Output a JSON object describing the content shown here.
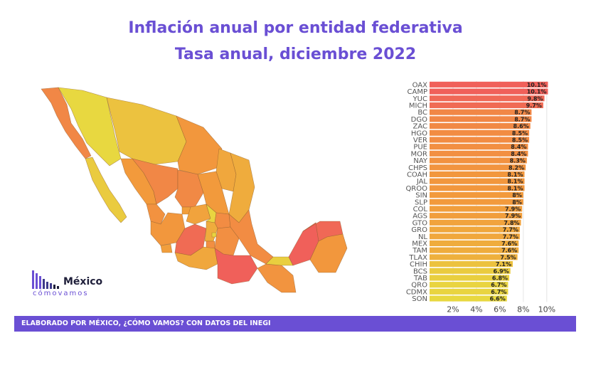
{
  "title": "Inflación anual por entidad federativa",
  "subtitle": "Tasa anual, diciembre 2022",
  "footer": "ELABORADO POR MÉXICO, ¿CÓMO VAMOS? CON DATOS DEL INEGI",
  "logo": {
    "name": "México",
    "tagline": "cómovamos"
  },
  "colors": {
    "title": "#6a4fd4",
    "footer_bg": "#6a4fd4",
    "high": "#f0605a",
    "mid": "#f29a3c",
    "low": "#e8d840"
  },
  "chart_data": {
    "type": "bar",
    "orientation": "horizontal",
    "categories": [
      "OAX",
      "CAMP",
      "YUC",
      "MICH",
      "BC",
      "DGO",
      "ZAC",
      "HGO",
      "VER",
      "PUE",
      "MOR",
      "NAY",
      "CHPS",
      "COAH",
      "JAL",
      "QROO",
      "SIN",
      "SLP",
      "COL",
      "AGS",
      "GTO",
      "GRO",
      "NL",
      "MEX",
      "TAM",
      "TLAX",
      "CHIH",
      "BCS",
      "TAB",
      "QRO",
      "CDMX",
      "SON"
    ],
    "values": [
      10.1,
      10.1,
      9.8,
      9.7,
      8.7,
      8.7,
      8.6,
      8.5,
      8.5,
      8.4,
      8.4,
      8.3,
      8.2,
      8.1,
      8.1,
      8.1,
      8,
      8,
      7.9,
      7.9,
      7.8,
      7.7,
      7.7,
      7.6,
      7.6,
      7.5,
      7.1,
      6.9,
      6.8,
      6.7,
      6.7,
      6.6
    ],
    "labels": [
      "10.1%",
      "10.1%",
      "9.8%",
      "9.7%",
      "8.7%",
      "8.7%",
      "8.6%",
      "8.5%",
      "8.5%",
      "8.4%",
      "8.4%",
      "8.3%",
      "8.2%",
      "8.1%",
      "8.1%",
      "8.1%",
      "8%",
      "8%",
      "7.9%",
      "7.9%",
      "7.8%",
      "7.7%",
      "7.7%",
      "7.6%",
      "7.6%",
      "7.5%",
      "7.1%",
      "6.9%",
      "6.8%",
      "6.7%",
      "6.7%",
      "6.6%"
    ],
    "xticks": [
      "2%",
      "4%",
      "6%",
      "8%",
      "10%"
    ],
    "xtick_values": [
      2,
      4,
      6,
      8,
      10
    ],
    "xlim": [
      0,
      10.8
    ],
    "grid": true
  },
  "map_data": {
    "type": "choropleth",
    "regions": [
      {
        "name": "BC",
        "value": 8.7
      },
      {
        "name": "BCS",
        "value": 6.9
      },
      {
        "name": "SON",
        "value": 6.6
      },
      {
        "name": "CHIH",
        "value": 7.1
      },
      {
        "name": "SIN",
        "value": 8
      },
      {
        "name": "DGO",
        "value": 8.7
      },
      {
        "name": "COAH",
        "value": 8.1
      },
      {
        "name": "NL",
        "value": 7.7
      },
      {
        "name": "TAM",
        "value": 7.6
      },
      {
        "name": "NAY",
        "value": 8.3
      },
      {
        "name": "ZAC",
        "value": 8.6
      },
      {
        "name": "SLP",
        "value": 8
      },
      {
        "name": "AGS",
        "value": 7.9
      },
      {
        "name": "JAL",
        "value": 8.1
      },
      {
        "name": "COL",
        "value": 7.9
      },
      {
        "name": "MICH",
        "value": 9.7
      },
      {
        "name": "GTO",
        "value": 7.8
      },
      {
        "name": "QRO",
        "value": 6.7
      },
      {
        "name": "HGO",
        "value": 8.5
      },
      {
        "name": "MEX",
        "value": 7.6
      },
      {
        "name": "CDMX",
        "value": 6.7
      },
      {
        "name": "MOR",
        "value": 8.4
      },
      {
        "name": "TLAX",
        "value": 7.5
      },
      {
        "name": "PUE",
        "value": 8.4
      },
      {
        "name": "VER",
        "value": 8.5
      },
      {
        "name": "GRO",
        "value": 7.7
      },
      {
        "name": "OAX",
        "value": 10.1
      },
      {
        "name": "CHPS",
        "value": 8.2
      },
      {
        "name": "TAB",
        "value": 6.8
      },
      {
        "name": "CAMP",
        "value": 10.1
      },
      {
        "name": "YUC",
        "value": 9.8
      },
      {
        "name": "QROO",
        "value": 8.1
      }
    ]
  }
}
